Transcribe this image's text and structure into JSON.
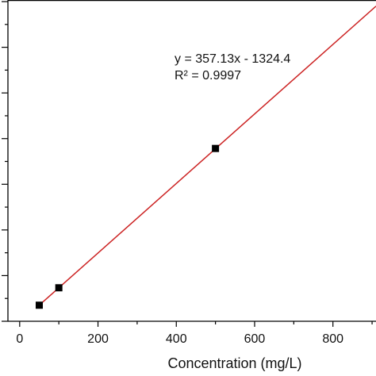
{
  "chart_data": {
    "type": "scatter",
    "title": "",
    "xlabel": "Concentration (mg/L)",
    "ylabel": "",
    "xlim": [
      -30,
      910
    ],
    "ylim": [
      0,
      330000
    ],
    "x_ticks": [
      0,
      200,
      400,
      600,
      800
    ],
    "y_minor_tick_count": 14,
    "grid": false,
    "legend": "none",
    "series": [
      {
        "marker": "square",
        "color": "#000000",
        "points": [
          {
            "x": 50,
            "y": 16500
          },
          {
            "x": 100,
            "y": 34400
          },
          {
            "x": 500,
            "y": 177500
          }
        ]
      }
    ],
    "fit_line": {
      "color": "#cc2222",
      "slope": 357.13,
      "intercept": -1324.4,
      "x_range": [
        50,
        910
      ]
    },
    "annotations": [
      "y = 357.13x - 1324.4",
      "R² = 0.9997"
    ]
  }
}
